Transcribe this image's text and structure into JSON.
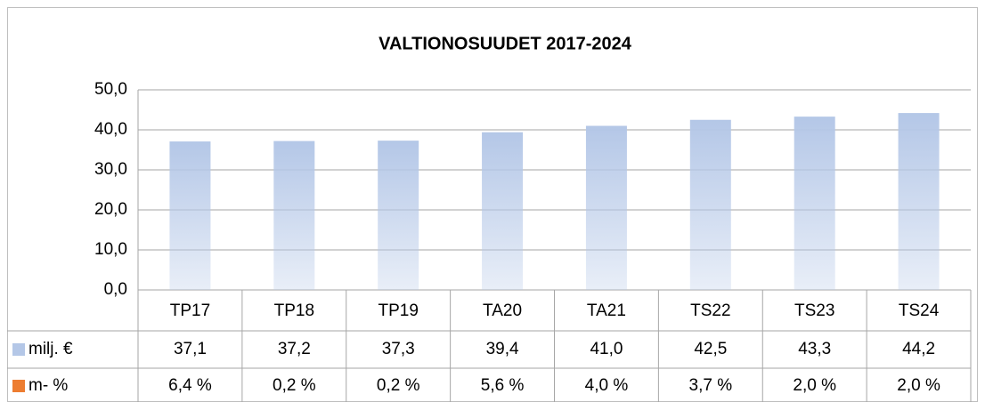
{
  "chart_data": {
    "type": "bar",
    "title": "VALTIONOSUUDET 2017-2024",
    "categories": [
      "TP17",
      "TP18",
      "TP19",
      "TA20",
      "TA21",
      "TS22",
      "TS23",
      "TS24"
    ],
    "series": [
      {
        "name": "milj. €",
        "color": "#b4c7e7",
        "values": [
          37.1,
          37.2,
          37.3,
          39.4,
          41.0,
          42.5,
          43.3,
          44.2
        ],
        "value_labels": [
          "37,1",
          "37,2",
          "37,3",
          "39,4",
          "41,0",
          "42,5",
          "43,3",
          "44,2"
        ]
      },
      {
        "name": "m- %",
        "color": "#ed7d31",
        "values": [
          6.4,
          0.2,
          0.2,
          5.6,
          4.0,
          3.7,
          2.0,
          2.0
        ],
        "value_labels": [
          "6,4 %",
          "0,2 %",
          "0,2 %",
          "5,6 %",
          "4,0 %",
          "3,7 %",
          "2,0 %",
          "2,0 %"
        ]
      }
    ],
    "ylim": [
      0,
      50
    ],
    "yticks": [
      {
        "value": 0,
        "label": "0,0"
      },
      {
        "value": 10,
        "label": "10,0"
      },
      {
        "value": 20,
        "label": "20,0"
      },
      {
        "value": 30,
        "label": "30,0"
      },
      {
        "value": 40,
        "label": "40,0"
      },
      {
        "value": 50,
        "label": "50,0"
      }
    ],
    "grid": true
  }
}
